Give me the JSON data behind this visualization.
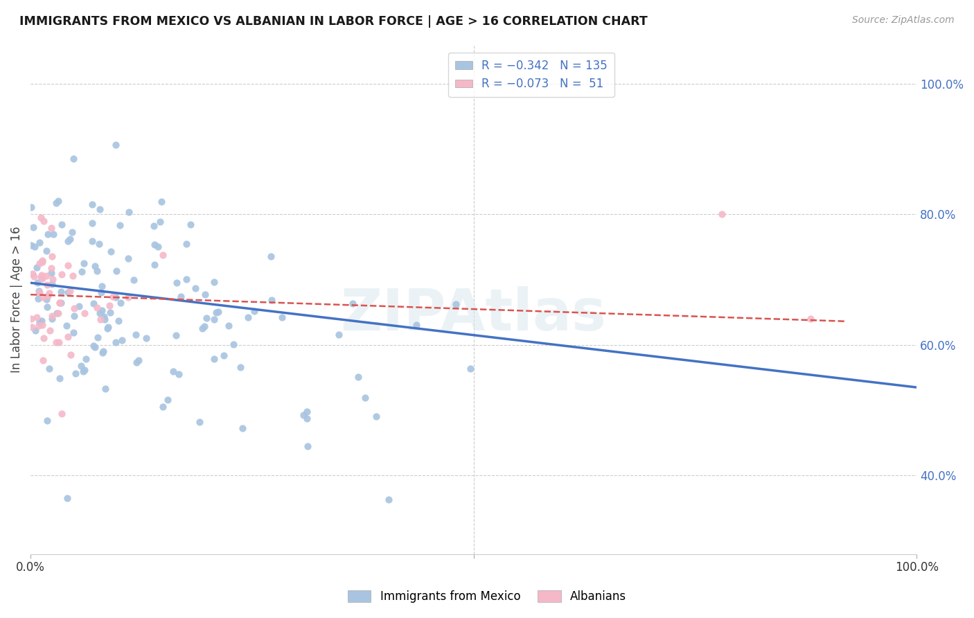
{
  "title": "IMMIGRANTS FROM MEXICO VS ALBANIAN IN LABOR FORCE | AGE > 16 CORRELATION CHART",
  "source": "Source: ZipAtlas.com",
  "ylabel": "In Labor Force | Age > 16",
  "color_mexico": "#a8c4e0",
  "color_albanian": "#f4b8c8",
  "color_line_mexico": "#4472c4",
  "color_line_albanian": "#d9534f",
  "color_axis_labels": "#4472c4",
  "xlim": [
    0.0,
    1.0
  ],
  "ylim": [
    0.28,
    1.06
  ],
  "right_ytick_vals": [
    0.4,
    0.6,
    0.8,
    1.0
  ],
  "right_ytick_labels": [
    "40.0%",
    "60.0%",
    "80.0%",
    "100.0%"
  ],
  "watermark": "ZIPAtlas",
  "mex_seed": 7,
  "alb_seed": 3
}
